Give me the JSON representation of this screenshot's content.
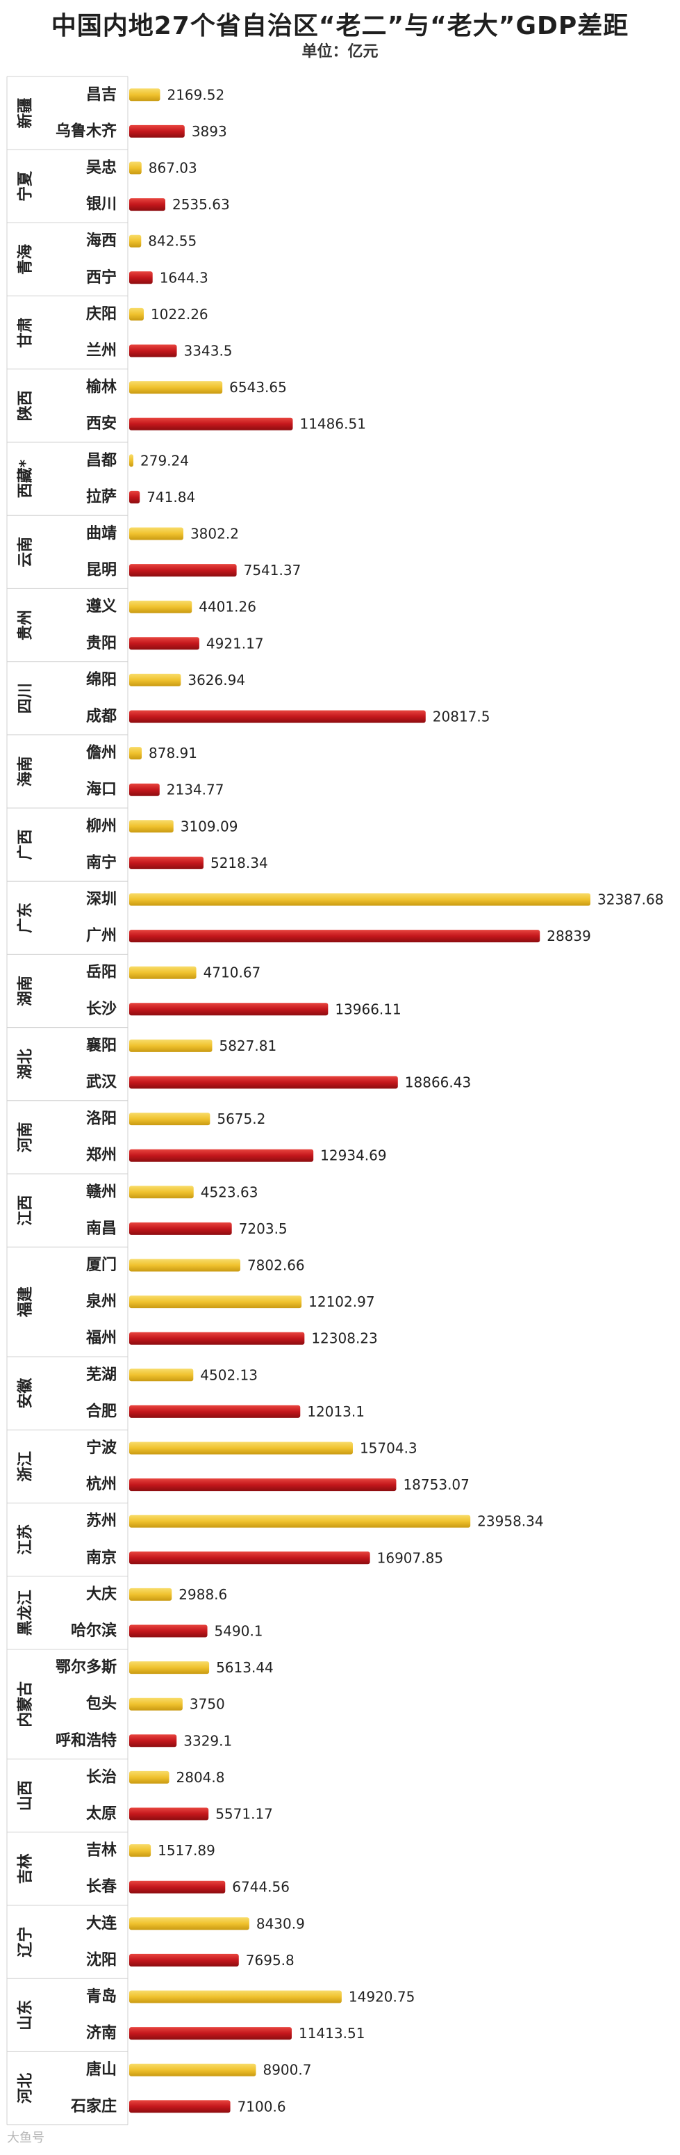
{
  "title": "中国内地27个省自治区“老二”与“老大”GDP差距",
  "unit": "单位：亿元",
  "watermark": "大鱼号",
  "colors": {
    "second": "#f0c22e",
    "first": "#c4171c",
    "grid": "#d0d0d0",
    "label": "#222222",
    "region": "#222222"
  },
  "chart_data": {
    "type": "bar",
    "orientation": "horizontal",
    "xlim": [
      0,
      32387.68
    ],
    "groups": [
      {
        "region": "新疆",
        "cities": [
          {
            "name": "昌吉",
            "value": 2169.52,
            "rank": "second"
          },
          {
            "name": "乌鲁木齐",
            "value": 3893,
            "rank": "first"
          }
        ]
      },
      {
        "region": "宁夏",
        "cities": [
          {
            "name": "吴忠",
            "value": 867.03,
            "rank": "second"
          },
          {
            "name": "银川",
            "value": 2535.63,
            "rank": "first"
          }
        ]
      },
      {
        "region": "青海",
        "cities": [
          {
            "name": "海西",
            "value": 842.55,
            "rank": "second"
          },
          {
            "name": "西宁",
            "value": 1644.3,
            "rank": "first"
          }
        ]
      },
      {
        "region": "甘肃",
        "cities": [
          {
            "name": "庆阳",
            "value": 1022.26,
            "rank": "second"
          },
          {
            "name": "兰州",
            "value": 3343.5,
            "rank": "first"
          }
        ]
      },
      {
        "region": "陕西",
        "cities": [
          {
            "name": "榆林",
            "value": 6543.65,
            "rank": "second"
          },
          {
            "name": "西安",
            "value": 11486.51,
            "rank": "first"
          }
        ]
      },
      {
        "region": "西藏*",
        "cities": [
          {
            "name": "昌都",
            "value": 279.24,
            "rank": "second"
          },
          {
            "name": "拉萨",
            "value": 741.84,
            "rank": "first"
          }
        ]
      },
      {
        "region": "云南",
        "cities": [
          {
            "name": "曲靖",
            "value": 3802.2,
            "rank": "second"
          },
          {
            "name": "昆明",
            "value": 7541.37,
            "rank": "first"
          }
        ]
      },
      {
        "region": "贵州",
        "cities": [
          {
            "name": "遵义",
            "value": 4401.26,
            "rank": "second"
          },
          {
            "name": "贵阳",
            "value": 4921.17,
            "rank": "first"
          }
        ]
      },
      {
        "region": "四川",
        "cities": [
          {
            "name": "绵阳",
            "value": 3626.94,
            "rank": "second"
          },
          {
            "name": "成都",
            "value": 20817.5,
            "rank": "first"
          }
        ]
      },
      {
        "region": "海南",
        "cities": [
          {
            "name": "儋州",
            "value": 878.91,
            "rank": "second"
          },
          {
            "name": "海口",
            "value": 2134.77,
            "rank": "first"
          }
        ]
      },
      {
        "region": "广西",
        "cities": [
          {
            "name": "柳州",
            "value": 3109.09,
            "rank": "second"
          },
          {
            "name": "南宁",
            "value": 5218.34,
            "rank": "first"
          }
        ]
      },
      {
        "region": "广东",
        "cities": [
          {
            "name": "深圳",
            "value": 32387.68,
            "rank": "second"
          },
          {
            "name": "广州",
            "value": 28839,
            "rank": "first"
          }
        ]
      },
      {
        "region": "湖南",
        "cities": [
          {
            "name": "岳阳",
            "value": 4710.67,
            "rank": "second"
          },
          {
            "name": "长沙",
            "value": 13966.11,
            "rank": "first"
          }
        ]
      },
      {
        "region": "湖北",
        "cities": [
          {
            "name": "襄阳",
            "value": 5827.81,
            "rank": "second"
          },
          {
            "name": "武汉",
            "value": 18866.43,
            "rank": "first"
          }
        ]
      },
      {
        "region": "河南",
        "cities": [
          {
            "name": "洛阳",
            "value": 5675.2,
            "rank": "second"
          },
          {
            "name": "郑州",
            "value": 12934.69,
            "rank": "first"
          }
        ]
      },
      {
        "region": "江西",
        "cities": [
          {
            "name": "赣州",
            "value": 4523.63,
            "rank": "second"
          },
          {
            "name": "南昌",
            "value": 7203.5,
            "rank": "first"
          }
        ]
      },
      {
        "region": "福建",
        "cities": [
          {
            "name": "厦门",
            "value": 7802.66,
            "rank": "second"
          },
          {
            "name": "泉州",
            "value": 12102.97,
            "rank": "second"
          },
          {
            "name": "福州",
            "value": 12308.23,
            "rank": "first"
          }
        ]
      },
      {
        "region": "安徽",
        "cities": [
          {
            "name": "芜湖",
            "value": 4502.13,
            "rank": "second"
          },
          {
            "name": "合肥",
            "value": 12013.1,
            "rank": "first"
          }
        ]
      },
      {
        "region": "浙江",
        "cities": [
          {
            "name": "宁波",
            "value": 15704.3,
            "rank": "second"
          },
          {
            "name": "杭州",
            "value": 18753.07,
            "rank": "first"
          }
        ]
      },
      {
        "region": "江苏",
        "cities": [
          {
            "name": "苏州",
            "value": 23958.34,
            "rank": "second"
          },
          {
            "name": "南京",
            "value": 16907.85,
            "rank": "first"
          }
        ]
      },
      {
        "region": "黑龙江",
        "cities": [
          {
            "name": "大庆",
            "value": 2988.6,
            "rank": "second"
          },
          {
            "name": "哈尔滨",
            "value": 5490.1,
            "rank": "first"
          }
        ]
      },
      {
        "region": "内蒙古",
        "cities": [
          {
            "name": "鄂尔多斯",
            "value": 5613.44,
            "rank": "second"
          },
          {
            "name": "包头",
            "value": 3750,
            "rank": "second"
          },
          {
            "name": "呼和浩特",
            "value": 3329.1,
            "rank": "first"
          }
        ]
      },
      {
        "region": "山西",
        "cities": [
          {
            "name": "长治",
            "value": 2804.8,
            "rank": "second"
          },
          {
            "name": "太原",
            "value": 5571.17,
            "rank": "first"
          }
        ]
      },
      {
        "region": "吉林",
        "cities": [
          {
            "name": "吉林",
            "value": 1517.89,
            "rank": "second"
          },
          {
            "name": "长春",
            "value": 6744.56,
            "rank": "first"
          }
        ]
      },
      {
        "region": "辽宁",
        "cities": [
          {
            "name": "大连",
            "value": 8430.9,
            "rank": "second"
          },
          {
            "name": "沈阳",
            "value": 7695.8,
            "rank": "first"
          }
        ]
      },
      {
        "region": "山东",
        "cities": [
          {
            "name": "青岛",
            "value": 14920.75,
            "rank": "second"
          },
          {
            "name": "济南",
            "value": 11413.51,
            "rank": "first"
          }
        ]
      },
      {
        "region": "河北",
        "cities": [
          {
            "name": "唐山",
            "value": 8900.7,
            "rank": "second"
          },
          {
            "name": "石家庄",
            "value": 7100.6,
            "rank": "first"
          }
        ]
      }
    ]
  }
}
